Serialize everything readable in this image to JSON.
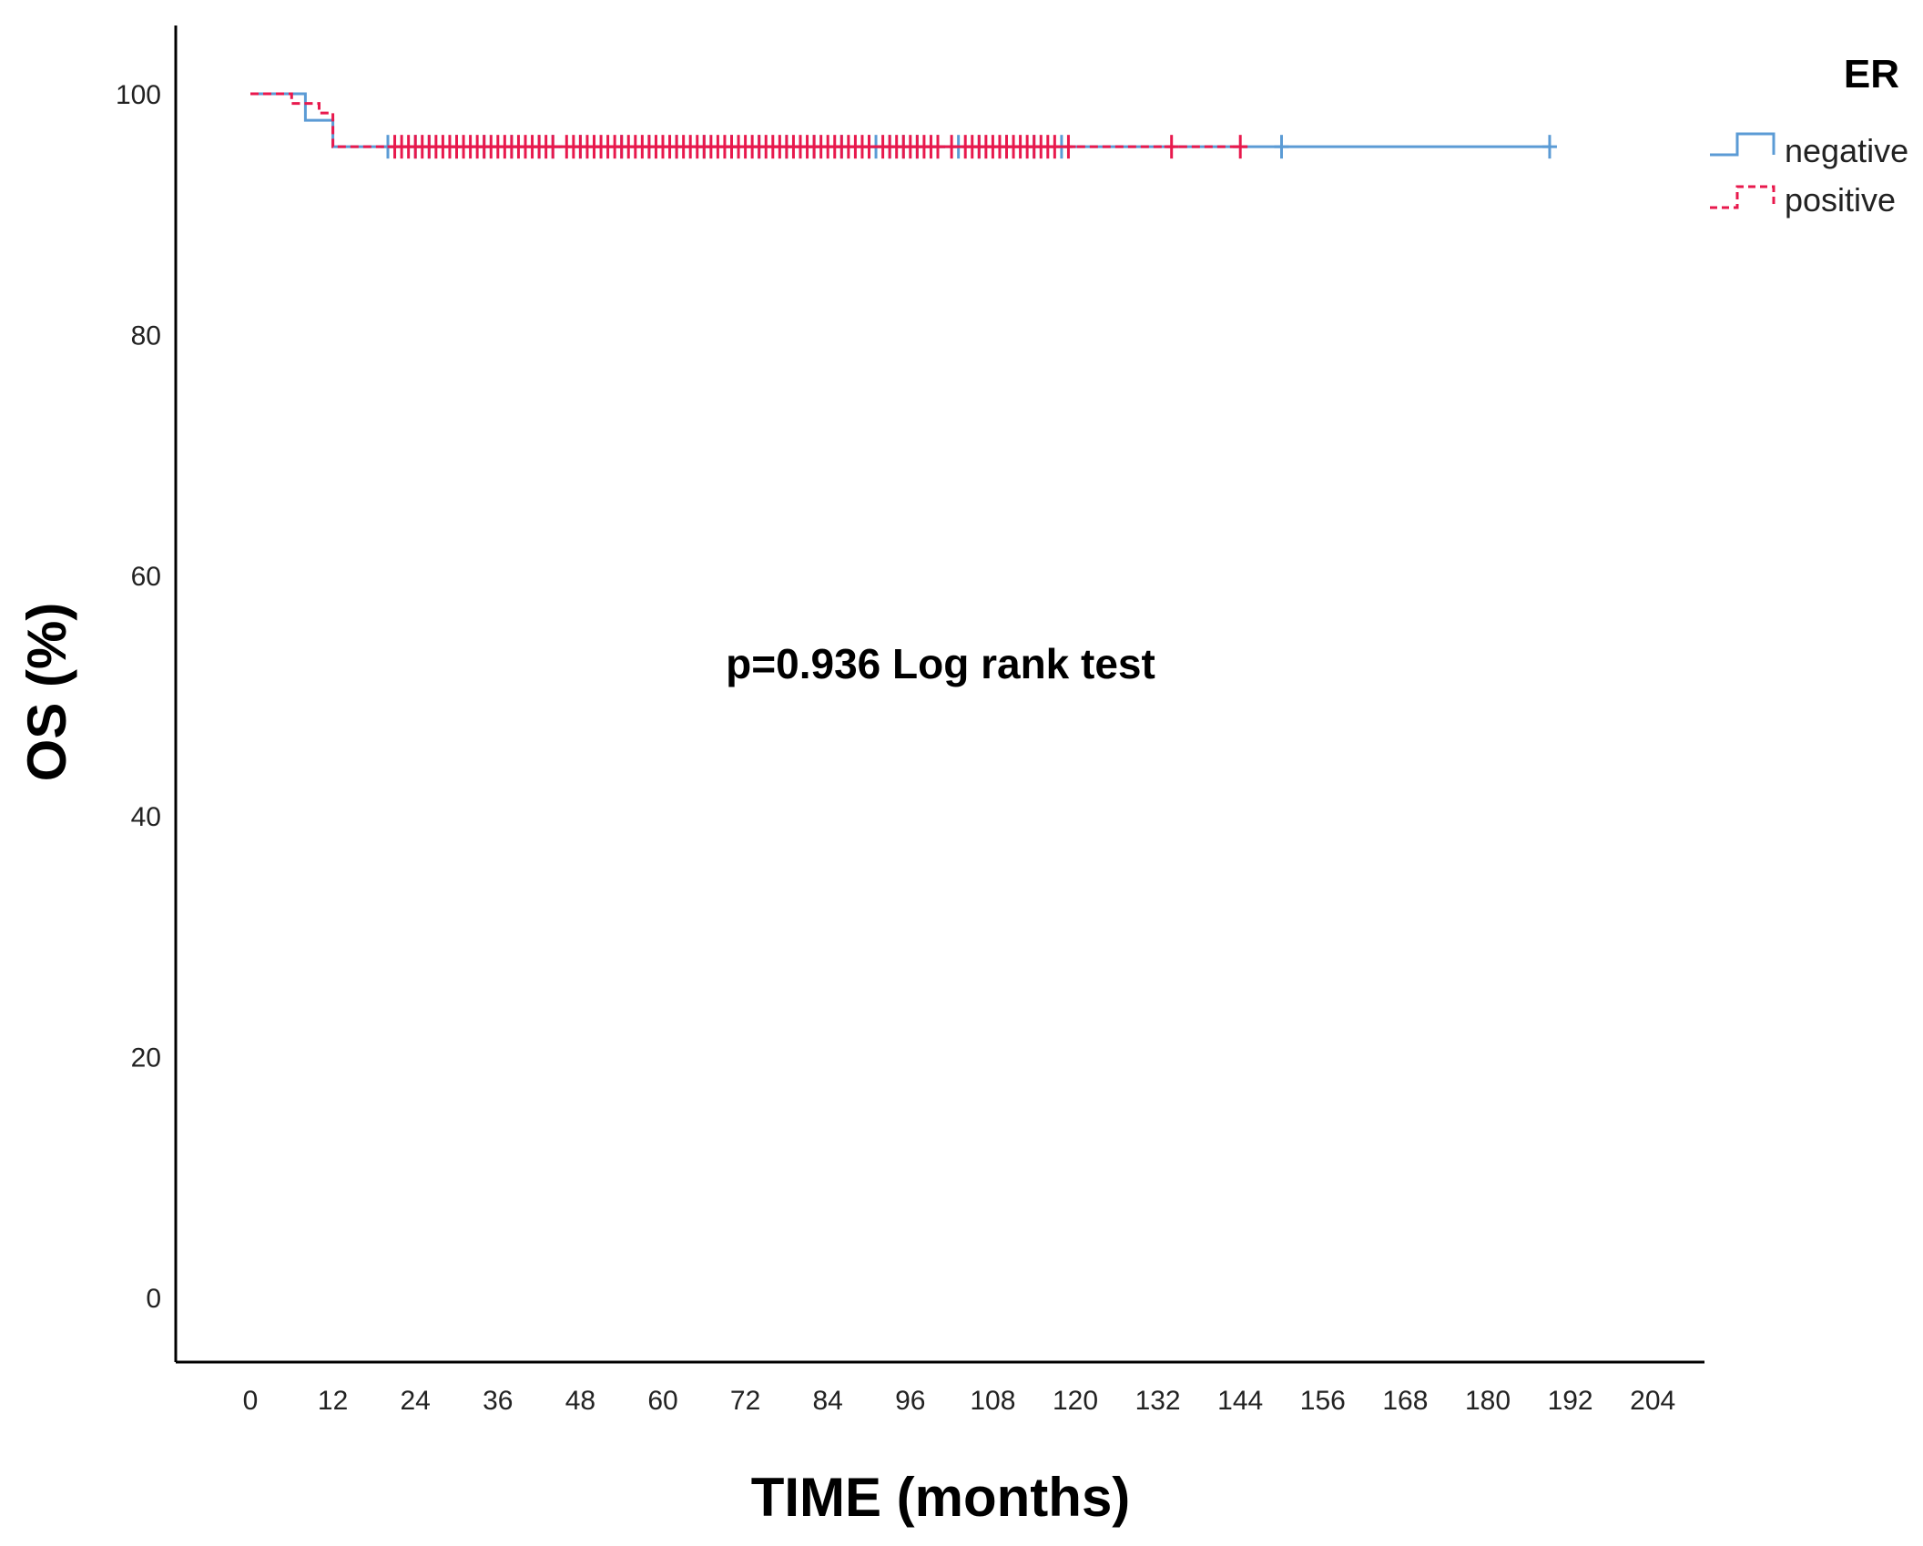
{
  "chart_data": {
    "type": "line",
    "subtype": "kaplan-meier",
    "xlabel": "TIME (months)",
    "ylabel": "OS (%)",
    "xlim": [
      0,
      204
    ],
    "ylim": [
      0,
      100
    ],
    "xticks": [
      0,
      12,
      24,
      36,
      48,
      60,
      72,
      84,
      96,
      108,
      120,
      132,
      144,
      156,
      168,
      180,
      192,
      204
    ],
    "yticks": [
      0,
      20,
      40,
      60,
      80,
      100
    ],
    "grid": false,
    "legend": {
      "title": "ER",
      "position": "top-right"
    },
    "annotation": "p=0.936 Log rank test",
    "series": [
      {
        "name": "negative",
        "color": "#5b9bd5",
        "style": "solid",
        "steps": [
          [
            0,
            100
          ],
          [
            8,
            97.8
          ],
          [
            12,
            95.6
          ]
        ],
        "end_x": 189,
        "censored_x": [
          20,
          24,
          26,
          30,
          34,
          38,
          42,
          44,
          48,
          54,
          58,
          62,
          66,
          70,
          74,
          78,
          82,
          86,
          90,
          91,
          93,
          95,
          97,
          100,
          103,
          106,
          110,
          114,
          118,
          150,
          189
        ]
      },
      {
        "name": "positive",
        "color": "#e8194d",
        "style": "dashed",
        "steps": [
          [
            0,
            100
          ],
          [
            6,
            99.2
          ],
          [
            10,
            98.4
          ],
          [
            12,
            95.6
          ]
        ],
        "end_x": 145,
        "censored_x": [
          21,
          22,
          23,
          24,
          25,
          26,
          27,
          28,
          29,
          30,
          31,
          32,
          33,
          34,
          35,
          36,
          37,
          38,
          39,
          40,
          41,
          42,
          43,
          44,
          46,
          47,
          48,
          49,
          50,
          51,
          52,
          53,
          54,
          55,
          56,
          57,
          58,
          59,
          60,
          61,
          62,
          63,
          64,
          65,
          66,
          67,
          68,
          69,
          70,
          71,
          72,
          73,
          74,
          75,
          76,
          77,
          78,
          79,
          80,
          81,
          82,
          83,
          84,
          85,
          86,
          87,
          88,
          89,
          90,
          92,
          93,
          94,
          95,
          96,
          97,
          98,
          99,
          100,
          102,
          104,
          105,
          106,
          107,
          108,
          109,
          110,
          111,
          112,
          113,
          114,
          115,
          116,
          117,
          119,
          134,
          144
        ]
      }
    ]
  }
}
